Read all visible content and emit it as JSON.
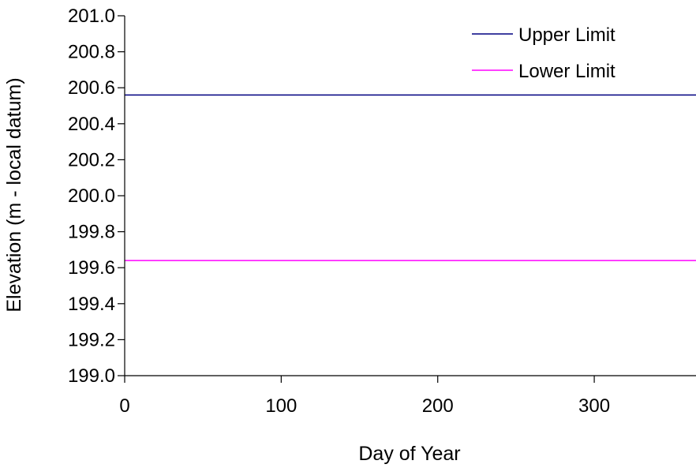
{
  "chart_data": {
    "type": "line",
    "title": "",
    "xlabel": "Day of Year",
    "ylabel": "Elevation (m - local datum)",
    "xlim": [
      0,
      365
    ],
    "ylim": [
      199.0,
      201.0
    ],
    "x_ticks": [
      0,
      100,
      200,
      300
    ],
    "x_tick_labels": [
      "0",
      "100",
      "200",
      "300"
    ],
    "y_ticks": [
      199.0,
      199.2,
      199.4,
      199.6,
      199.8,
      200.0,
      200.2,
      200.4,
      200.6,
      200.8,
      201.0
    ],
    "y_tick_labels": [
      "199.0",
      "199.2",
      "199.4",
      "199.6",
      "199.8",
      "200.0",
      "200.2",
      "200.4",
      "200.6",
      "200.8",
      "201.0"
    ],
    "grid": false,
    "legend_position": "top-right",
    "series": [
      {
        "name": "Upper Limit",
        "color": "#000080",
        "x": [
          0,
          365
        ],
        "y": [
          200.56,
          200.56
        ]
      },
      {
        "name": "Lower Limit",
        "color": "#ff00ff",
        "x": [
          0,
          365
        ],
        "y": [
          199.64,
          199.64
        ]
      }
    ]
  }
}
